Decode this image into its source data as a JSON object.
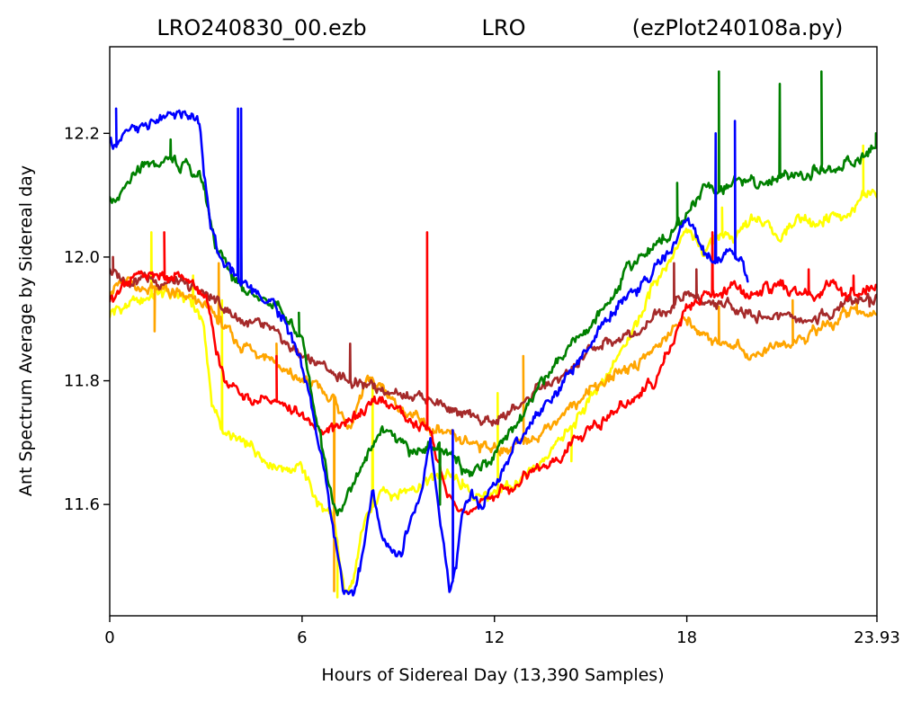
{
  "title": {
    "left": "LRO240830_00.ezb",
    "center": "LRO",
    "right": "(ezPlot240108a.py)"
  },
  "chart_data": {
    "type": "line",
    "xlabel": "Hours of Sidereal Day  (13,390 Samples)",
    "ylabel": "Ant Spectrum Average by Sidereal day",
    "xlim": [
      0,
      23.93
    ],
    "ylim": [
      11.42,
      12.34
    ],
    "xticks": [
      {
        "value": 0,
        "label": "0"
      },
      {
        "value": 6,
        "label": "6"
      },
      {
        "value": 12,
        "label": "12"
      },
      {
        "value": 18,
        "label": "18"
      },
      {
        "value": 23.93,
        "label": "23.93"
      }
    ],
    "yticks": [
      {
        "value": 11.6,
        "label": "11.6"
      },
      {
        "value": 11.8,
        "label": "11.8"
      },
      {
        "value": 12.0,
        "label": "12.0"
      },
      {
        "value": 12.2,
        "label": "12.2"
      }
    ],
    "grid": false,
    "series": [
      {
        "color": "#ffff00",
        "x": [
          0,
          0.5,
          1,
          1.5,
          2,
          2.5,
          2.9,
          3.2,
          3.5,
          4,
          4.5,
          5,
          5.5,
          6,
          6.5,
          7,
          7.3,
          7.6,
          8,
          8.5,
          9,
          9.5,
          10,
          10.5,
          11,
          11.5,
          12,
          12.5,
          13,
          13.5,
          14,
          14.5,
          15,
          15.5,
          16,
          16.5,
          17,
          17.5,
          18,
          18.5,
          19,
          19.5,
          20,
          20.5,
          21,
          21.5,
          22,
          22.5,
          23,
          23.5,
          23.93
        ],
        "y": [
          11.91,
          11.92,
          11.93,
          11.94,
          11.94,
          11.93,
          11.9,
          11.76,
          11.72,
          11.7,
          11.69,
          11.67,
          11.66,
          11.66,
          11.6,
          11.57,
          11.46,
          11.48,
          11.58,
          11.62,
          11.62,
          11.63,
          11.64,
          11.65,
          11.63,
          11.61,
          11.62,
          11.63,
          11.64,
          11.67,
          11.7,
          11.73,
          11.77,
          11.8,
          11.86,
          11.9,
          11.96,
          12.0,
          12.04,
          12.01,
          12.04,
          12.03,
          12.06,
          12.05,
          12.03,
          12.07,
          12.05,
          12.07,
          12.06,
          12.1,
          12.1
        ],
        "spikes": [
          [
            1.3,
            12.04
          ],
          [
            2.6,
            11.97
          ],
          [
            3.5,
            11.93
          ],
          [
            7.1,
            11.45
          ],
          [
            8.2,
            11.79
          ],
          [
            11.0,
            11.64
          ],
          [
            12.1,
            11.78
          ],
          [
            14.4,
            11.67
          ],
          [
            18.9,
            12.14
          ],
          [
            19.1,
            12.08
          ],
          [
            23.5,
            12.18
          ]
        ]
      },
      {
        "color": "#ffa500",
        "x": [
          0,
          0.5,
          1,
          1.5,
          2,
          2.5,
          3,
          3.5,
          4,
          4.5,
          5,
          5.5,
          6,
          6.5,
          7,
          7.5,
          8,
          8.5,
          9,
          9.5,
          10,
          10.5,
          11,
          11.5,
          12,
          12.5,
          13,
          13.5,
          14,
          14.5,
          15,
          15.5,
          16,
          16.5,
          17,
          17.5,
          18,
          18.5,
          19,
          19.5,
          20,
          20.5,
          21,
          21.5,
          22,
          22.5,
          23,
          23.5,
          23.93
        ],
        "y": [
          11.95,
          11.96,
          11.95,
          11.95,
          11.94,
          11.93,
          11.92,
          11.89,
          11.86,
          11.85,
          11.84,
          11.81,
          11.8,
          11.79,
          11.77,
          11.72,
          11.8,
          11.79,
          11.76,
          11.74,
          11.72,
          11.71,
          11.7,
          11.7,
          11.69,
          11.69,
          11.7,
          11.72,
          11.74,
          11.76,
          11.79,
          11.8,
          11.82,
          11.83,
          11.85,
          11.88,
          11.9,
          11.88,
          11.86,
          11.86,
          11.84,
          11.85,
          11.86,
          11.86,
          11.88,
          11.89,
          11.91,
          11.91,
          11.91
        ],
        "spikes": [
          [
            1.4,
            11.88
          ],
          [
            3.4,
            11.99
          ],
          [
            5.2,
            11.86
          ],
          [
            7.0,
            11.46
          ],
          [
            12.9,
            11.84
          ],
          [
            19.0,
            11.92
          ],
          [
            21.3,
            11.93
          ],
          [
            23.3,
            11.93
          ]
        ]
      },
      {
        "color": "#a52a2a",
        "x": [
          0,
          0.5,
          1,
          1.5,
          2,
          2.5,
          3,
          3.5,
          4,
          4.5,
          5,
          5.5,
          6,
          6.5,
          7,
          7.5,
          8,
          8.5,
          9,
          9.5,
          10,
          10.5,
          11,
          11.5,
          12,
          12.5,
          13,
          13.5,
          14,
          14.5,
          15,
          15.5,
          16,
          16.5,
          17,
          17.5,
          18,
          18.5,
          19,
          19.5,
          20,
          20.5,
          21,
          21.5,
          22,
          22.5,
          23,
          23.5,
          23.93
        ],
        "y": [
          11.98,
          11.96,
          11.97,
          11.96,
          11.96,
          11.95,
          11.94,
          11.92,
          11.9,
          11.89,
          11.88,
          11.86,
          11.84,
          11.83,
          11.81,
          11.8,
          11.79,
          11.79,
          11.78,
          11.78,
          11.77,
          11.76,
          11.74,
          11.74,
          11.73,
          11.75,
          11.77,
          11.79,
          11.8,
          11.82,
          11.85,
          11.86,
          11.87,
          11.88,
          11.91,
          11.92,
          11.94,
          11.93,
          11.92,
          11.92,
          11.91,
          11.9,
          11.91,
          11.9,
          11.9,
          11.91,
          11.93,
          11.93,
          11.94
        ],
        "spikes": [
          [
            0.1,
            12.0
          ],
          [
            7.5,
            11.86
          ],
          [
            17.6,
            11.99
          ],
          [
            18.3,
            11.98
          ],
          [
            23.7,
            11.92
          ]
        ]
      },
      {
        "color": "#ff0000",
        "x": [
          0,
          0.5,
          1,
          1.5,
          2,
          2.5,
          3,
          3.3,
          3.6,
          4,
          4.5,
          5,
          5.5,
          6,
          6.5,
          7,
          7.5,
          8,
          8.5,
          9,
          9.5,
          10,
          10.5,
          11,
          11.5,
          12,
          12.5,
          13,
          13.5,
          14,
          14.5,
          15,
          15.5,
          16,
          16.5,
          17,
          17.5,
          18,
          18.5,
          19,
          19.5,
          20,
          20.5,
          21,
          21.5,
          22,
          22.5,
          23,
          23.5,
          23.93
        ],
        "y": [
          11.93,
          11.96,
          11.97,
          11.97,
          11.97,
          11.96,
          11.94,
          11.86,
          11.8,
          11.78,
          11.77,
          11.77,
          11.76,
          11.74,
          11.72,
          11.72,
          11.74,
          11.75,
          11.77,
          11.75,
          11.73,
          11.72,
          11.62,
          11.58,
          11.6,
          11.62,
          11.63,
          11.65,
          11.66,
          11.67,
          11.7,
          11.72,
          11.74,
          11.76,
          11.78,
          11.8,
          11.86,
          11.92,
          11.94,
          11.94,
          11.95,
          11.94,
          11.95,
          11.95,
          11.94,
          11.94,
          11.95,
          11.94,
          11.95,
          11.95
        ],
        "spikes": [
          [
            1.7,
            12.04
          ],
          [
            5.2,
            11.84
          ],
          [
            9.9,
            12.04
          ],
          [
            17.3,
            11.84
          ],
          [
            18.8,
            12.04
          ],
          [
            21.8,
            11.98
          ],
          [
            23.2,
            11.97
          ]
        ]
      },
      {
        "color": "#008000",
        "x": [
          0,
          0.3,
          0.6,
          1,
          1.5,
          2,
          2.5,
          2.9,
          3.3,
          3.7,
          4,
          4.5,
          5,
          5.5,
          6,
          6.4,
          6.8,
          7.1,
          7.5,
          8,
          8.5,
          9,
          9.5,
          10,
          10.5,
          11,
          11.5,
          12,
          12.5,
          13,
          13.5,
          14,
          14.5,
          15,
          15.5,
          16,
          16.5,
          17,
          17.5,
          18,
          18.5,
          19,
          19.5,
          20,
          20.5,
          21,
          21.5,
          22,
          22.5,
          23,
          23.5,
          23.93
        ],
        "y": [
          12.1,
          12.09,
          12.12,
          12.14,
          12.15,
          12.16,
          12.14,
          12.12,
          12.02,
          11.98,
          11.96,
          11.94,
          11.93,
          11.9,
          11.87,
          11.75,
          11.65,
          11.58,
          11.62,
          11.68,
          11.72,
          11.7,
          11.68,
          11.7,
          11.68,
          11.66,
          11.66,
          11.68,
          11.72,
          11.76,
          11.8,
          11.83,
          11.86,
          11.89,
          11.92,
          11.97,
          12.0,
          12.02,
          12.04,
          12.07,
          12.11,
          12.11,
          12.12,
          12.12,
          12.12,
          12.13,
          12.13,
          12.14,
          12.14,
          12.15,
          12.16,
          12.18
        ],
        "spikes": [
          [
            1.9,
            12.19
          ],
          [
            4.1,
            12.03
          ],
          [
            5.9,
            11.91
          ],
          [
            10.3,
            11.6
          ],
          [
            17.7,
            12.12
          ],
          [
            19.0,
            12.3
          ],
          [
            20.9,
            12.28
          ],
          [
            22.2,
            12.3
          ],
          [
            23.9,
            12.2
          ]
        ]
      },
      {
        "color": "#0000ff",
        "x": [
          0,
          0.3,
          0.6,
          1,
          1.5,
          2,
          2.5,
          2.8,
          3.1,
          3.4,
          3.7,
          4.2,
          4.6,
          5,
          5.4,
          5.8,
          6.2,
          6.6,
          7,
          7.3,
          7.6,
          7.9,
          8.2,
          8.5,
          8.8,
          9.1,
          9.4,
          9.7,
          10,
          10.3,
          10.6,
          10.8,
          11,
          11.3,
          11.6,
          12,
          12.5,
          13,
          13.5,
          14,
          14.5,
          15,
          15.5,
          16,
          16.5,
          17,
          17.3,
          17.7,
          18,
          18.3,
          18.6,
          19,
          19.3,
          19.6,
          19.9
        ],
        "y": [
          12.18,
          12.19,
          12.2,
          12.21,
          12.22,
          12.23,
          12.23,
          12.22,
          12.06,
          12.0,
          11.98,
          11.96,
          11.94,
          11.93,
          11.9,
          11.86,
          11.78,
          11.68,
          11.56,
          11.46,
          11.46,
          11.52,
          11.62,
          11.54,
          11.52,
          11.52,
          11.58,
          11.62,
          11.7,
          11.58,
          11.46,
          11.5,
          11.58,
          11.62,
          11.6,
          11.64,
          11.68,
          11.72,
          11.76,
          11.78,
          11.82,
          11.86,
          11.9,
          11.93,
          11.95,
          11.98,
          12.0,
          12.03,
          12.06,
          12.04,
          12.0,
          12.0,
          12.01,
          12.0,
          11.97
        ],
        "spikes": [
          [
            0.2,
            12.24
          ],
          [
            4.0,
            12.24
          ],
          [
            4.1,
            12.24
          ],
          [
            10.7,
            11.72
          ],
          [
            18.9,
            12.2
          ],
          [
            19.5,
            12.22
          ]
        ]
      }
    ]
  }
}
